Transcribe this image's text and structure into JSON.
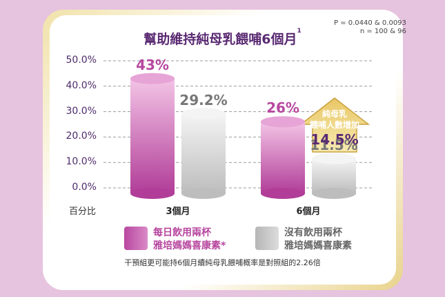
{
  "title": "幫助維持純母乳餵哺6個月",
  "title_footnote_mark": "1",
  "stats": {
    "p_value": "P = 0.0440 & 0.0093",
    "n": "n = 100 & 96"
  },
  "y_axis_label": "百分比",
  "footnote": "干預組更可能持6個月續純母乳餵哺概率是對照組的2.26倍",
  "arrow": {
    "line1": "純母乳",
    "line2": "餵哺人數增加",
    "value": "14.5%"
  },
  "legend": [
    {
      "line1": "每日飲用兩杯",
      "line2": "雅培媽媽喜康素*",
      "color": "#b8479f"
    },
    {
      "line1": "沒有飲用兩杯",
      "line2": "雅培媽媽喜康素",
      "color": "#b5b5b5"
    }
  ],
  "chart_data": {
    "type": "bar",
    "categories": [
      "3個月",
      "6個月"
    ],
    "series": [
      {
        "name": "每日飲用兩杯雅培媽媽喜康素*",
        "values": [
          43,
          26
        ],
        "labels": [
          "43%",
          "26%"
        ],
        "color": "#b8479f",
        "label_color": "#b8479f"
      },
      {
        "name": "沒有飲用兩杯雅培媽媽喜康素",
        "values": [
          29.2,
          11.5
        ],
        "labels": [
          "29.2%",
          "11.5%"
        ],
        "color": "#b5b5b5",
        "label_color": "#777777"
      }
    ],
    "ylim": [
      0,
      50
    ],
    "yticks": [
      "0.0%",
      "10.0%",
      "20.0%",
      "30.0%",
      "40.0%",
      "50.0%"
    ],
    "ytick_values": [
      0,
      10,
      20,
      30,
      40,
      50
    ],
    "grid": true
  }
}
